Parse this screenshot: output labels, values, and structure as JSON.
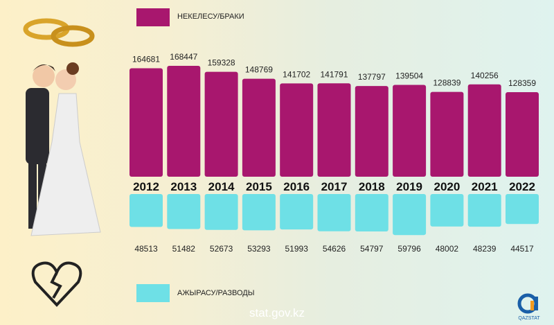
{
  "legend": {
    "marriages": "НЕКЕЛЕСУ/БРАКИ",
    "divorces": "АЖЫРАСУ/РАЗВОДЫ"
  },
  "footer": "stat.gov.kz",
  "logo_text": "QAZSTAT",
  "colors": {
    "marriages": "#a8176e",
    "divorces": "#6ee0e6"
  },
  "chart_data": {
    "type": "bar",
    "categories": [
      "2012",
      "2013",
      "2014",
      "2015",
      "2016",
      "2017",
      "2018",
      "2019",
      "2020",
      "2021",
      "2022"
    ],
    "series": [
      {
        "name": "НЕКЕЛЕСУ/БРАКИ",
        "values": [
          164681,
          168447,
          159328,
          148769,
          141702,
          141791,
          137797,
          139504,
          128839,
          140256,
          128359
        ]
      },
      {
        "name": "АЖЫРАСУ/РАЗВОДЫ",
        "values": [
          48513,
          51482,
          52673,
          53293,
          51993,
          54626,
          54797,
          59796,
          48002,
          48239,
          44517
        ]
      }
    ],
    "legend_placement": "left"
  }
}
